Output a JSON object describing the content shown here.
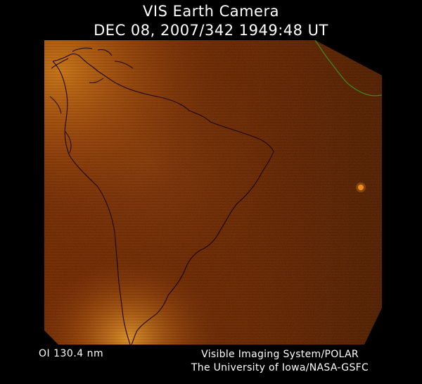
{
  "header": {
    "title": "VIS Earth Camera",
    "timestamp": "DEC 08, 2007/342 1949:48 UT"
  },
  "footer": {
    "wavelength": "OI  130.4 nm",
    "instrument": "Visible Imaging System/POLAR",
    "credit": "The University of Iowa/NASA-GSFC"
  },
  "colors": {
    "background": "#000000",
    "image_dark": "#5a1a00",
    "image_mid": "#8a3c06",
    "image_bright": "#e08a1e",
    "coastline": "#1a0600",
    "terminator_line": "#3c8c1e"
  }
}
